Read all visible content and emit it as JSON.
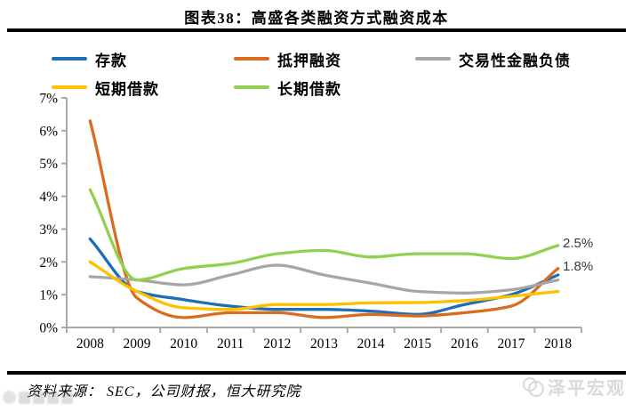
{
  "title": "图表38：高盛各类融资方式融资成本",
  "chart_data": {
    "type": "line",
    "title": "图表38：高盛各类融资方式融资成本",
    "x": [
      2008,
      2009,
      2010,
      2011,
      2012,
      2013,
      2014,
      2015,
      2016,
      2017,
      2018
    ],
    "series": [
      {
        "name": "存款",
        "color": "#1F6EB5",
        "values": [
          2.7,
          1.1,
          0.85,
          0.65,
          0.55,
          0.55,
          0.5,
          0.4,
          0.7,
          1.0,
          1.6
        ]
      },
      {
        "name": "抵押融资",
        "color": "#D96C1F",
        "values": [
          6.3,
          0.9,
          0.3,
          0.45,
          0.45,
          0.3,
          0.4,
          0.35,
          0.45,
          0.65,
          1.8
        ]
      },
      {
        "name": "交易性金融负债",
        "color": "#A6A6A6",
        "values": [
          1.55,
          1.45,
          1.3,
          1.6,
          1.9,
          1.6,
          1.35,
          1.1,
          1.05,
          1.15,
          1.45
        ]
      },
      {
        "name": "短期借款",
        "color": "#FFC000",
        "values": [
          2.0,
          1.1,
          0.6,
          0.55,
          0.7,
          0.7,
          0.75,
          0.76,
          0.82,
          0.95,
          1.1
        ]
      },
      {
        "name": "长期借款",
        "color": "#92D050",
        "values": [
          4.2,
          1.45,
          1.8,
          1.95,
          2.25,
          2.35,
          2.15,
          2.25,
          2.25,
          2.1,
          2.5
        ]
      }
    ],
    "ylim": [
      0,
      7
    ],
    "ytick_step": 1,
    "ytick_suffix": "%",
    "grid": false,
    "smooth": true,
    "legend_position": "top",
    "axis_color": "#A9A9A9",
    "annotations": [
      {
        "text": "2.5%",
        "series": "长期借款",
        "x": 2018,
        "value": 2.5
      },
      {
        "text": "1.8%",
        "series": "抵押融资",
        "x": 2018,
        "value": 1.8
      }
    ]
  },
  "footer": {
    "source_label": "资料来源：  SEC，公司财报，恒大研究院",
    "brand": "泽平宏观"
  }
}
